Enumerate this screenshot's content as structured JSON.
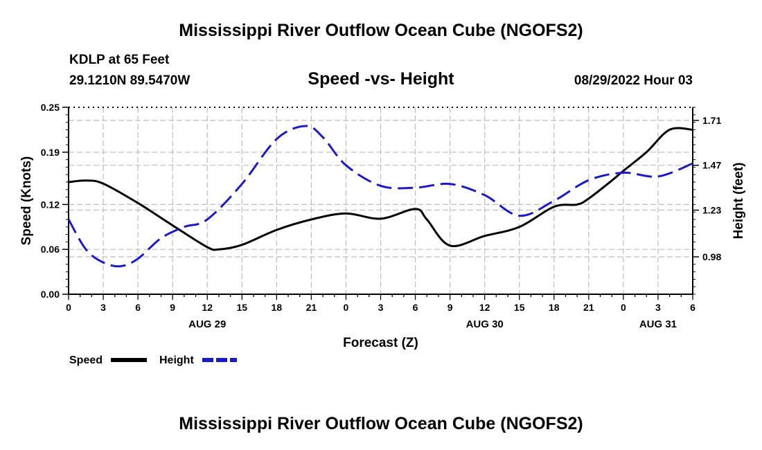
{
  "header": {
    "title": "Mississippi River Outflow Ocean Cube (NGOFS2)",
    "station": "KDLP at 65 Feet",
    "coords": "29.1210N  89.5470W",
    "subtitle": "Speed -vs- Height",
    "datetime": "08/29/2022 Hour 03"
  },
  "footer": {
    "title": "Mississippi River Outflow Ocean Cube (NGOFS2)"
  },
  "colors": {
    "speed": "#000000",
    "height": "#1a1acc",
    "grid": "#bdbdbd"
  },
  "chart_data": {
    "type": "line",
    "title": "Speed -vs- Height",
    "xlabel": "Forecast (Z)",
    "ylabel": "Speed (Knots)",
    "y2label": "Height (feet)",
    "x_range": [
      0,
      54
    ],
    "ylim": [
      0.0,
      0.25
    ],
    "y2lim": [
      0.78,
      1.78
    ],
    "x_ticks": [
      0,
      3,
      6,
      9,
      12,
      15,
      18,
      21,
      24,
      27,
      30,
      33,
      36,
      39,
      42,
      45,
      48,
      51,
      54
    ],
    "x_tick_labels": [
      "0",
      "3",
      "6",
      "9",
      "12",
      "15",
      "18",
      "21",
      "0",
      "3",
      "6",
      "9",
      "12",
      "15",
      "18",
      "21",
      "0",
      "3",
      "6"
    ],
    "date_labels": [
      {
        "x": 12,
        "label": "AUG 29"
      },
      {
        "x": 36,
        "label": "AUG 30"
      },
      {
        "x": 51,
        "label": "AUG 31"
      }
    ],
    "y_ticks": [
      0.0,
      0.06,
      0.12,
      0.19,
      0.25
    ],
    "y_tick_labels": [
      "0.00",
      "0.06",
      "0.12",
      "0.19",
      "0.25"
    ],
    "y2_ticks": [
      0.98,
      1.23,
      1.47,
      1.71
    ],
    "y2_tick_labels": [
      "0.98",
      "1.23",
      "1.47",
      "1.71"
    ],
    "grid": true,
    "legend": "bottom-left",
    "series": [
      {
        "name": "Speed",
        "axis": "left",
        "style": "solid",
        "x": [
          0,
          1.5,
          3,
          6,
          9,
          12,
          13,
          15,
          18,
          21,
          24,
          27,
          30,
          31,
          33,
          36,
          39,
          42,
          44,
          45,
          47,
          48,
          50,
          52,
          54
        ],
        "values": [
          0.15,
          0.152,
          0.148,
          0.122,
          0.092,
          0.063,
          0.06,
          0.066,
          0.086,
          0.1,
          0.108,
          0.101,
          0.114,
          0.1,
          0.065,
          0.078,
          0.09,
          0.117,
          0.12,
          0.128,
          0.152,
          0.165,
          0.19,
          0.22,
          0.22
        ]
      },
      {
        "name": "Height",
        "axis": "right",
        "style": "dashed",
        "x": [
          0,
          1.5,
          3,
          4.5,
          6,
          8,
          10,
          12,
          15,
          18,
          20.5,
          22,
          24,
          27,
          30,
          33,
          36,
          39,
          42,
          45,
          48,
          51,
          54
        ],
        "values": [
          1.18,
          1.02,
          0.95,
          0.93,
          0.97,
          1.08,
          1.14,
          1.18,
          1.37,
          1.61,
          1.68,
          1.62,
          1.47,
          1.36,
          1.35,
          1.37,
          1.31,
          1.2,
          1.28,
          1.39,
          1.43,
          1.41,
          1.48
        ]
      }
    ]
  }
}
